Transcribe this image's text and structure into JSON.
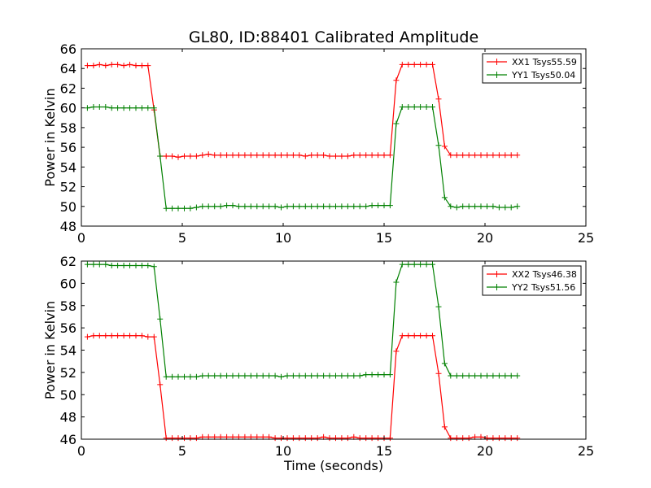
{
  "figure": {
    "title": "GL80, ID:88401 Calibrated Amplitude",
    "xlabel": "Time (seconds)"
  },
  "chart_data": [
    {
      "type": "line",
      "title": "GL80, ID:88401 Calibrated Amplitude",
      "xlabel": "",
      "ylabel": "Power in Kelvin",
      "xlim": [
        0,
        25
      ],
      "ylim": [
        48,
        66
      ],
      "xticks": [
        0,
        5,
        10,
        15,
        20,
        25
      ],
      "yticks": [
        48,
        50,
        52,
        54,
        56,
        58,
        60,
        62,
        64,
        66
      ],
      "grid": false,
      "legend": "top-right",
      "marker": "+",
      "series": [
        {
          "name": "XX1 Tsys55.59",
          "color": "#ff0000",
          "x": [
            0.3,
            0.6,
            0.9,
            1.2,
            1.5,
            1.8,
            2.1,
            2.4,
            2.7,
            3.0,
            3.3,
            3.6,
            3.9,
            4.2,
            4.5,
            4.8,
            5.1,
            5.4,
            5.7,
            6.0,
            6.3,
            6.6,
            6.9,
            7.2,
            7.5,
            7.8,
            8.1,
            8.4,
            8.7,
            9.0,
            9.3,
            9.6,
            9.9,
            10.2,
            10.5,
            10.8,
            11.1,
            11.4,
            11.7,
            12.0,
            12.3,
            12.6,
            12.9,
            13.2,
            13.5,
            13.8,
            14.1,
            14.4,
            14.7,
            15.0,
            15.3,
            15.6,
            15.9,
            16.2,
            16.5,
            16.8,
            17.1,
            17.4,
            17.7,
            18.0,
            18.3,
            18.6,
            18.9,
            19.2,
            19.5,
            19.8,
            20.1,
            20.4,
            20.7,
            21.0,
            21.3,
            21.6
          ],
          "y": [
            64.3,
            64.3,
            64.4,
            64.3,
            64.4,
            64.4,
            64.3,
            64.4,
            64.3,
            64.3,
            64.3,
            59.8,
            55.1,
            55.1,
            55.1,
            55.0,
            55.1,
            55.1,
            55.1,
            55.2,
            55.3,
            55.2,
            55.2,
            55.2,
            55.2,
            55.2,
            55.2,
            55.2,
            55.2,
            55.2,
            55.2,
            55.2,
            55.2,
            55.2,
            55.2,
            55.2,
            55.1,
            55.2,
            55.2,
            55.2,
            55.1,
            55.1,
            55.1,
            55.1,
            55.2,
            55.2,
            55.2,
            55.2,
            55.2,
            55.2,
            55.2,
            62.8,
            64.4,
            64.4,
            64.4,
            64.4,
            64.4,
            64.4,
            60.9,
            56.1,
            55.2,
            55.2,
            55.2,
            55.2,
            55.2,
            55.2,
            55.2,
            55.2,
            55.2,
            55.2,
            55.2,
            55.2
          ]
        },
        {
          "name": "YY1 Tsys50.04",
          "color": "#008000",
          "x": [
            0.3,
            0.6,
            0.9,
            1.2,
            1.5,
            1.8,
            2.1,
            2.4,
            2.7,
            3.0,
            3.3,
            3.6,
            3.9,
            4.2,
            4.5,
            4.8,
            5.1,
            5.4,
            5.7,
            6.0,
            6.3,
            6.6,
            6.9,
            7.2,
            7.5,
            7.8,
            8.1,
            8.4,
            8.7,
            9.0,
            9.3,
            9.6,
            9.9,
            10.2,
            10.5,
            10.8,
            11.1,
            11.4,
            11.7,
            12.0,
            12.3,
            12.6,
            12.9,
            13.2,
            13.5,
            13.8,
            14.1,
            14.4,
            14.7,
            15.0,
            15.3,
            15.6,
            15.9,
            16.2,
            16.5,
            16.8,
            17.1,
            17.4,
            17.7,
            18.0,
            18.3,
            18.6,
            18.9,
            19.2,
            19.5,
            19.8,
            20.1,
            20.4,
            20.7,
            21.0,
            21.3,
            21.6
          ],
          "y": [
            60.0,
            60.1,
            60.1,
            60.1,
            60.0,
            60.0,
            60.0,
            60.0,
            60.0,
            60.0,
            60.0,
            60.0,
            55.1,
            49.8,
            49.8,
            49.8,
            49.8,
            49.8,
            49.9,
            50.0,
            50.0,
            50.0,
            50.0,
            50.1,
            50.1,
            50.0,
            50.0,
            50.0,
            50.0,
            50.0,
            50.0,
            50.0,
            49.9,
            50.0,
            50.0,
            50.0,
            50.0,
            50.0,
            50.0,
            50.0,
            50.0,
            50.0,
            50.0,
            50.0,
            50.0,
            50.0,
            50.0,
            50.1,
            50.1,
            50.1,
            50.1,
            58.4,
            60.1,
            60.1,
            60.1,
            60.1,
            60.1,
            60.1,
            56.2,
            50.9,
            50.0,
            49.9,
            50.0,
            50.0,
            50.0,
            50.0,
            50.0,
            50.0,
            49.9,
            49.9,
            49.9,
            50.0
          ]
        }
      ]
    },
    {
      "type": "line",
      "title": "",
      "xlabel": "Time (seconds)",
      "ylabel": "Power in Kelvin",
      "xlim": [
        0,
        25
      ],
      "ylim": [
        46,
        62
      ],
      "xticks": [
        0,
        5,
        10,
        15,
        20,
        25
      ],
      "yticks": [
        46,
        48,
        50,
        52,
        54,
        56,
        58,
        60,
        62
      ],
      "grid": false,
      "legend": "top-right",
      "marker": "+",
      "series": [
        {
          "name": "XX2 Tsys46.38",
          "color": "#ff0000",
          "x": [
            0.3,
            0.6,
            0.9,
            1.2,
            1.5,
            1.8,
            2.1,
            2.4,
            2.7,
            3.0,
            3.3,
            3.6,
            3.9,
            4.2,
            4.5,
            4.8,
            5.1,
            5.4,
            5.7,
            6.0,
            6.3,
            6.6,
            6.9,
            7.2,
            7.5,
            7.8,
            8.1,
            8.4,
            8.7,
            9.0,
            9.3,
            9.6,
            9.9,
            10.2,
            10.5,
            10.8,
            11.1,
            11.4,
            11.7,
            12.0,
            12.3,
            12.6,
            12.9,
            13.2,
            13.5,
            13.8,
            14.1,
            14.4,
            14.7,
            15.0,
            15.3,
            15.6,
            15.9,
            16.2,
            16.5,
            16.8,
            17.1,
            17.4,
            17.7,
            18.0,
            18.3,
            18.6,
            18.9,
            19.2,
            19.5,
            19.8,
            20.1,
            20.4,
            20.7,
            21.0,
            21.3,
            21.6
          ],
          "y": [
            55.2,
            55.3,
            55.3,
            55.3,
            55.3,
            55.3,
            55.3,
            55.3,
            55.3,
            55.3,
            55.2,
            55.2,
            50.9,
            46.1,
            46.1,
            46.1,
            46.1,
            46.1,
            46.1,
            46.2,
            46.2,
            46.2,
            46.2,
            46.2,
            46.2,
            46.2,
            46.2,
            46.2,
            46.2,
            46.2,
            46.2,
            46.1,
            46.1,
            46.1,
            46.1,
            46.1,
            46.1,
            46.1,
            46.1,
            46.2,
            46.1,
            46.1,
            46.1,
            46.1,
            46.2,
            46.1,
            46.1,
            46.1,
            46.1,
            46.1,
            46.1,
            53.9,
            55.3,
            55.3,
            55.3,
            55.3,
            55.3,
            55.3,
            51.9,
            47.1,
            46.1,
            46.1,
            46.1,
            46.1,
            46.2,
            46.2,
            46.1,
            46.1,
            46.1,
            46.1,
            46.1,
            46.1
          ]
        },
        {
          "name": "YY2 Tsys51.56",
          "color": "#008000",
          "x": [
            0.3,
            0.6,
            0.9,
            1.2,
            1.5,
            1.8,
            2.1,
            2.4,
            2.7,
            3.0,
            3.3,
            3.6,
            3.9,
            4.2,
            4.5,
            4.8,
            5.1,
            5.4,
            5.7,
            6.0,
            6.3,
            6.6,
            6.9,
            7.2,
            7.5,
            7.8,
            8.1,
            8.4,
            8.7,
            9.0,
            9.3,
            9.6,
            9.9,
            10.2,
            10.5,
            10.8,
            11.1,
            11.4,
            11.7,
            12.0,
            12.3,
            12.6,
            12.9,
            13.2,
            13.5,
            13.8,
            14.1,
            14.4,
            14.7,
            15.0,
            15.3,
            15.6,
            15.9,
            16.2,
            16.5,
            16.8,
            17.1,
            17.4,
            17.7,
            18.0,
            18.3,
            18.6,
            18.9,
            19.2,
            19.5,
            19.8,
            20.1,
            20.4,
            20.7,
            21.0,
            21.3,
            21.6
          ],
          "y": [
            61.7,
            61.7,
            61.7,
            61.7,
            61.6,
            61.6,
            61.6,
            61.6,
            61.6,
            61.6,
            61.6,
            61.5,
            56.8,
            51.6,
            51.6,
            51.6,
            51.6,
            51.6,
            51.6,
            51.7,
            51.7,
            51.7,
            51.7,
            51.7,
            51.7,
            51.7,
            51.7,
            51.7,
            51.7,
            51.7,
            51.7,
            51.7,
            51.6,
            51.7,
            51.7,
            51.7,
            51.7,
            51.7,
            51.7,
            51.7,
            51.7,
            51.7,
            51.7,
            51.7,
            51.7,
            51.7,
            51.8,
            51.8,
            51.8,
            51.8,
            51.8,
            60.1,
            61.7,
            61.7,
            61.7,
            61.7,
            61.7,
            61.7,
            57.9,
            52.8,
            51.7,
            51.7,
            51.7,
            51.7,
            51.7,
            51.7,
            51.7,
            51.7,
            51.7,
            51.7,
            51.7,
            51.7
          ]
        }
      ]
    }
  ]
}
